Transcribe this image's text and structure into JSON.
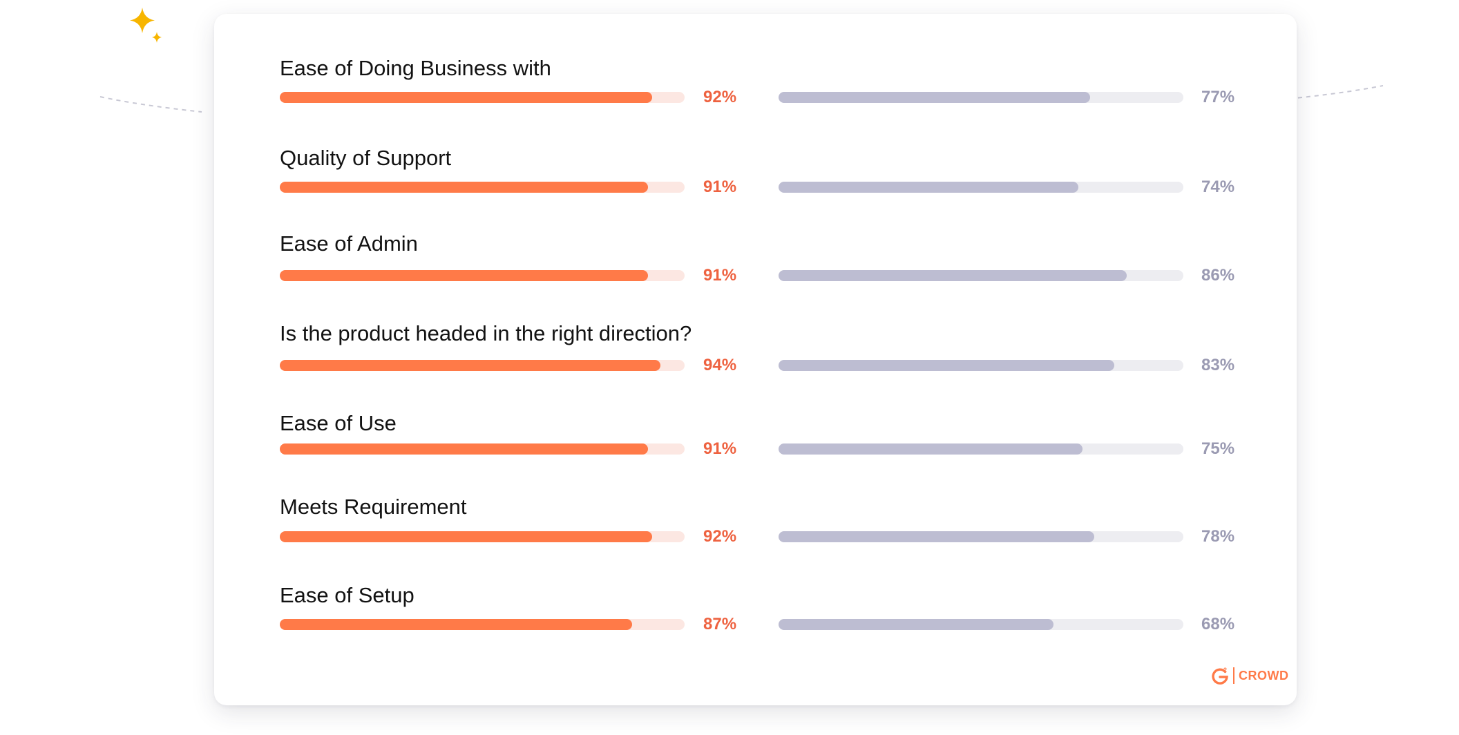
{
  "chart_data": {
    "type": "bar",
    "orientation": "horizontal",
    "value_unit": "%",
    "xlim": [
      0,
      100
    ],
    "categories": [
      "Ease of Doing Business with",
      "Quality of Support",
      "Ease of Admin",
      "Is the product headed in the right direction?",
      "Ease of Use",
      "Meets Requirement",
      "Ease of Setup"
    ],
    "series": [
      {
        "color": "#ff7a48",
        "track_color": "#fce7e2",
        "label_color": "#ee6240",
        "values": [
          92,
          91,
          91,
          94,
          91,
          92,
          87
        ],
        "labels": [
          "92%",
          "91%",
          "91%",
          "94%",
          "91%",
          "92%",
          "87%"
        ]
      },
      {
        "color": "#bdbdd2",
        "track_color": "#ededf1",
        "label_color": "#9a9ab2",
        "values": [
          77,
          74,
          86,
          83,
          75,
          78,
          68
        ],
        "labels": [
          "77%",
          "74%",
          "86%",
          "83%",
          "75%",
          "78%",
          "68%"
        ]
      }
    ],
    "grid": false,
    "legend": "none"
  },
  "decorations": {
    "sparkle_icon": "sparkle-icon",
    "sparkle_color": "#f7b500",
    "dashed_arc_color": "#c8c8d4"
  },
  "brand": {
    "logo_icon": "g2-logo-icon",
    "text": "CROWD",
    "color": "#ff7a48"
  }
}
